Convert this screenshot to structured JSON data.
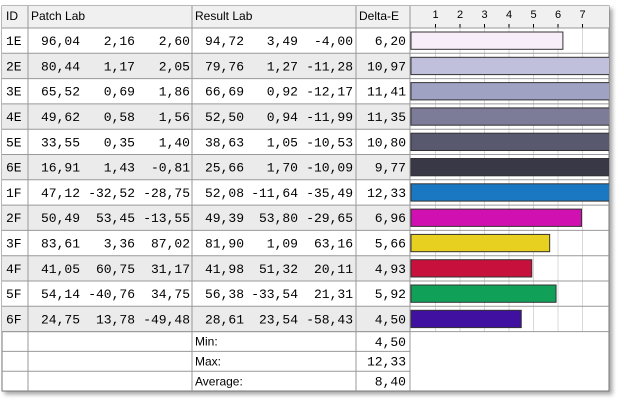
{
  "header": {
    "id": "ID",
    "patch": "Patch Lab",
    "result": "Result Lab",
    "delta": "Delta-E"
  },
  "axis": {
    "xlim": [
      0,
      8
    ],
    "ticks": [
      1,
      2,
      3,
      4,
      5,
      6,
      7
    ]
  },
  "rows": [
    {
      "id": "1E",
      "patch": [
        "96,04",
        "2,16",
        "2,60"
      ],
      "result": [
        "94,72",
        "3,49",
        "-4,00"
      ],
      "delta_e": {
        "value": 6.2,
        "label": "6,20"
      },
      "color": "#f8eefa"
    },
    {
      "id": "2E",
      "patch": [
        "80,44",
        "1,17",
        "2,05"
      ],
      "result": [
        "79,76",
        "1,27",
        "-11,28"
      ],
      "delta_e": {
        "value": 10.97,
        "label": "10,97"
      },
      "color": "#c0c0dc"
    },
    {
      "id": "3E",
      "patch": [
        "65,52",
        "0,69",
        "1,86"
      ],
      "result": [
        "66,69",
        "0,92",
        "-12,17"
      ],
      "delta_e": {
        "value": 11.41,
        "label": "11,41"
      },
      "color": "#a0a2c4"
    },
    {
      "id": "4E",
      "patch": [
        "49,62",
        "0,58",
        "1,56"
      ],
      "result": [
        "52,50",
        "0,94",
        "-11,99"
      ],
      "delta_e": {
        "value": 11.35,
        "label": "11,35"
      },
      "color": "#7c7c98"
    },
    {
      "id": "5E",
      "patch": [
        "33,55",
        "0,35",
        "1,40"
      ],
      "result": [
        "38,63",
        "1,05",
        "-10,53"
      ],
      "delta_e": {
        "value": 10.8,
        "label": "10,80"
      },
      "color": "#58586e"
    },
    {
      "id": "6E",
      "patch": [
        "16,91",
        "1,43",
        "-0,81"
      ],
      "result": [
        "25,66",
        "1,70",
        "-10,09"
      ],
      "delta_e": {
        "value": 9.77,
        "label": "9,77"
      },
      "color": "#383846"
    },
    {
      "id": "1F",
      "patch": [
        "47,12",
        "-32,52",
        "-28,75"
      ],
      "result": [
        "52,08",
        "-11,64",
        "-35,49"
      ],
      "delta_e": {
        "value": 12.33,
        "label": "12,33"
      },
      "color": "#1a78c2"
    },
    {
      "id": "2F",
      "patch": [
        "50,49",
        "53,45",
        "-13,55"
      ],
      "result": [
        "49,39",
        "53,80",
        "-29,65"
      ],
      "delta_e": {
        "value": 6.96,
        "label": "6,96"
      },
      "color": "#d010b0"
    },
    {
      "id": "3F",
      "patch": [
        "83,61",
        "3,36",
        "87,02"
      ],
      "result": [
        "81,90",
        "1,09",
        "63,16"
      ],
      "delta_e": {
        "value": 5.66,
        "label": "5,66"
      },
      "color": "#e8d020"
    },
    {
      "id": "4F",
      "patch": [
        "41,05",
        "60,75",
        "31,17"
      ],
      "result": [
        "41,98",
        "51,32",
        "20,11"
      ],
      "delta_e": {
        "value": 4.93,
        "label": "4,93"
      },
      "color": "#c8103c"
    },
    {
      "id": "5F",
      "patch": [
        "54,14",
        "-40,76",
        "34,75"
      ],
      "result": [
        "56,38",
        "-33,54",
        "21,31"
      ],
      "delta_e": {
        "value": 5.92,
        "label": "5,92"
      },
      "color": "#10a058"
    },
    {
      "id": "6F",
      "patch": [
        "24,75",
        "13,78",
        "-49,48"
      ],
      "result": [
        "28,61",
        "23,54",
        "-58,43"
      ],
      "delta_e": {
        "value": 4.5,
        "label": "4,50"
      },
      "color": "#4010a0"
    }
  ],
  "summary": [
    {
      "label": "Min:",
      "value": "4,50"
    },
    {
      "label": "Max:",
      "value": "12,33"
    },
    {
      "label": "Average:",
      "value": "8,40"
    }
  ]
}
